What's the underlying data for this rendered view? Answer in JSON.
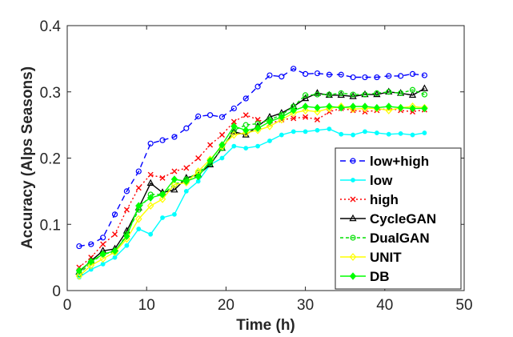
{
  "chart_data": {
    "type": "line",
    "title": "",
    "xlabel": "Time (h)",
    "ylabel": "Accuracy (Alps Seasons)",
    "xlim": [
      0,
      50
    ],
    "ylim": [
      0,
      0.4
    ],
    "grid": false,
    "legend_position": "bottom-right",
    "x_ticks": [
      0,
      10,
      20,
      30,
      40,
      50
    ],
    "x_tick_labels": [
      "0",
      "10",
      "20",
      "30",
      "40",
      "50"
    ],
    "y_ticks": [
      0,
      0.1,
      0.2,
      0.3,
      0.4
    ],
    "y_tick_labels": [
      "0",
      "0.1",
      "0.2",
      "0.3",
      "0.4"
    ],
    "x": [
      1.5,
      3,
      4.5,
      6,
      7.5,
      9,
      10.5,
      12,
      13.5,
      15,
      16.5,
      18,
      19.5,
      21,
      22.5,
      24,
      25.5,
      27,
      28.5,
      30,
      31.5,
      33,
      34.5,
      36,
      37.5,
      39,
      40.5,
      42,
      43.5,
      45
    ],
    "series": [
      {
        "name": "low+high",
        "color": "#0000ff",
        "dash": "7,5",
        "marker": "circle",
        "values": [
          0.067,
          0.07,
          0.08,
          0.115,
          0.15,
          0.18,
          0.222,
          0.227,
          0.232,
          0.245,
          0.263,
          0.265,
          0.262,
          0.275,
          0.29,
          0.308,
          0.325,
          0.323,
          0.335,
          0.327,
          0.328,
          0.326,
          0.326,
          0.322,
          0.322,
          0.322,
          0.324,
          0.324,
          0.327,
          0.325
        ]
      },
      {
        "name": "low",
        "color": "#00ffff",
        "dash": "",
        "marker": "dot",
        "values": [
          0.02,
          0.032,
          0.04,
          0.05,
          0.068,
          0.093,
          0.085,
          0.11,
          0.115,
          0.15,
          0.165,
          0.19,
          0.2,
          0.218,
          0.215,
          0.218,
          0.226,
          0.235,
          0.24,
          0.24,
          0.242,
          0.244,
          0.236,
          0.235,
          0.24,
          0.238,
          0.236,
          0.237,
          0.235,
          0.238
        ]
      },
      {
        "name": "high",
        "color": "#ff0000",
        "dash": "2,3",
        "marker": "x",
        "values": [
          0.035,
          0.05,
          0.07,
          0.085,
          0.122,
          0.155,
          0.175,
          0.17,
          0.18,
          0.185,
          0.2,
          0.22,
          0.235,
          0.255,
          0.265,
          0.258,
          0.252,
          0.258,
          0.26,
          0.262,
          0.258,
          0.27,
          0.275,
          0.272,
          0.27,
          0.272,
          0.275,
          0.272,
          0.27,
          0.273
        ]
      },
      {
        "name": "CycleGAN",
        "color": "#000000",
        "dash": "",
        "marker": "triangle",
        "values": [
          0.028,
          0.045,
          0.06,
          0.063,
          0.09,
          0.125,
          0.162,
          0.148,
          0.152,
          0.17,
          0.175,
          0.19,
          0.215,
          0.24,
          0.235,
          0.248,
          0.262,
          0.268,
          0.278,
          0.29,
          0.298,
          0.295,
          0.295,
          0.293,
          0.296,
          0.296,
          0.3,
          0.298,
          0.295,
          0.305
        ]
      },
      {
        "name": "DualGAN",
        "color": "#00e000",
        "dash": "4,3",
        "marker": "circle",
        "values": [
          0.025,
          0.042,
          0.055,
          0.058,
          0.085,
          0.122,
          0.145,
          0.145,
          0.16,
          0.168,
          0.178,
          0.192,
          0.215,
          0.242,
          0.25,
          0.252,
          0.258,
          0.265,
          0.278,
          0.295,
          0.296,
          0.296,
          0.298,
          0.296,
          0.296,
          0.298,
          0.3,
          0.298,
          0.303,
          0.296
        ]
      },
      {
        "name": "UNIT",
        "color": "#ffff00",
        "dash": "",
        "marker": "diamond",
        "values": [
          0.022,
          0.038,
          0.048,
          0.058,
          0.078,
          0.108,
          0.128,
          0.138,
          0.16,
          0.163,
          0.18,
          0.198,
          0.218,
          0.235,
          0.238,
          0.242,
          0.248,
          0.258,
          0.268,
          0.272,
          0.27,
          0.275,
          0.278,
          0.274,
          0.275,
          0.275,
          0.272,
          0.276,
          0.278,
          0.276
        ]
      },
      {
        "name": "DB",
        "color": "#00ff00",
        "dash": "",
        "marker": "diamond-filled",
        "values": [
          0.03,
          0.044,
          0.055,
          0.06,
          0.082,
          0.128,
          0.14,
          0.145,
          0.168,
          0.165,
          0.172,
          0.196,
          0.22,
          0.248,
          0.242,
          0.245,
          0.255,
          0.262,
          0.272,
          0.278,
          0.276,
          0.278,
          0.276,
          0.278,
          0.278,
          0.276,
          0.278,
          0.276,
          0.275,
          0.275
        ]
      }
    ]
  }
}
